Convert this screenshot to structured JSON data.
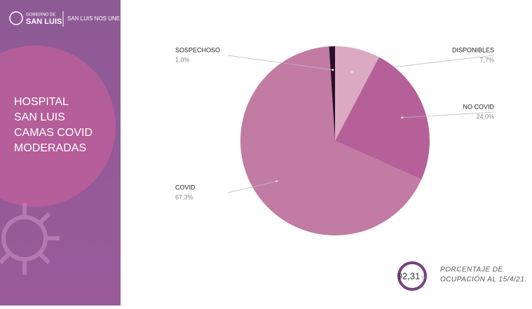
{
  "header": {
    "logo_top": "GOBIERNO DE",
    "logo_main": "SAN LUIS",
    "slogan": "SAN LUIS NOS UNE"
  },
  "panel_title": [
    "HOSPITAL",
    "SAN LUIS",
    "CAMAS COVID",
    "MODERADAS"
  ],
  "chart_data": {
    "type": "pie",
    "categories": [
      "DISPONIBLES",
      "NO COVID",
      "COVID",
      "SOSPECHOSO"
    ],
    "values": [
      7.7,
      24.0,
      67.3,
      1.0
    ],
    "value_labels": [
      "7,7%",
      "24,0%",
      "67,3%",
      "1,0%"
    ],
    "colors": [
      "#dba9c2",
      "#b6609a",
      "#c27ba2",
      "#2c0f2a"
    ]
  },
  "occupancy": {
    "value": 92.31,
    "label": "92,31",
    "unit": "%",
    "caption": [
      "PORCENTAJE DE",
      "OCUPACIÓN AL 15/4/21."
    ]
  }
}
